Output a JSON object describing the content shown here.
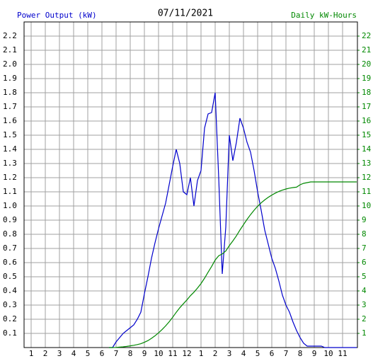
{
  "chart_data": {
    "type": "line",
    "title": "07/11/2021",
    "y_label": "Power Output (kW)",
    "y2_label": "Daily kW-Hours",
    "xlim": [
      0.5,
      24.05
    ],
    "xticks": [
      1,
      2,
      3,
      4,
      5,
      6,
      7,
      8,
      9,
      10,
      11,
      12,
      {
        "value": 13,
        "label": "1"
      },
      {
        "value": 14,
        "label": "2"
      },
      {
        "value": 15,
        "label": "3"
      },
      {
        "value": 16,
        "label": "4"
      },
      {
        "value": 17,
        "label": "5"
      },
      {
        "value": 18,
        "label": "6"
      },
      {
        "value": 19,
        "label": "7"
      },
      {
        "value": 20,
        "label": "8"
      },
      {
        "value": 21,
        "label": "9"
      },
      {
        "value": 22,
        "label": "10"
      },
      {
        "value": 23,
        "label": "11"
      }
    ],
    "ylim": [
      0,
      2.3
    ],
    "yticks": [
      0.1,
      0.2,
      0.3,
      0.4,
      0.5,
      0.6,
      0.7,
      0.8,
      0.9,
      {
        "value": 1,
        "label": "1.0"
      },
      1.1,
      1.2,
      1.3,
      1.4,
      1.5,
      1.6,
      1.7,
      1.8,
      1.9,
      {
        "value": 2,
        "label": "2.0"
      },
      2.1,
      2.2
    ],
    "y2lim": [
      0,
      23
    ],
    "y2ticks": [
      1,
      2,
      3,
      4,
      5,
      6,
      7,
      8,
      9,
      10,
      11,
      12,
      13,
      14,
      15,
      16,
      17,
      18,
      19,
      20,
      21,
      22
    ],
    "grid": true,
    "x": [
      6.5,
      6.75,
      7,
      7.25,
      7.5,
      7.75,
      8,
      8.25,
      8.5,
      8.75,
      9,
      9.25,
      9.5,
      9.75,
      10,
      10.25,
      10.5,
      10.75,
      11,
      11.25,
      11.5,
      11.75,
      12,
      12.25,
      12.5,
      12.75,
      13,
      13.25,
      13.5,
      13.75,
      14,
      14.25,
      14.5,
      14.75,
      15,
      15.25,
      15.5,
      15.75,
      16,
      16.25,
      16.5,
      16.75,
      17,
      17.25,
      17.5,
      17.75,
      18,
      18.25,
      18.5,
      18.75,
      19,
      19.25,
      19.5,
      19.75,
      20,
      20.25,
      20.5,
      20.75,
      21,
      21.25,
      21.5,
      21.75,
      22,
      23,
      24
    ],
    "series": [
      {
        "name": "Power Output (kW)",
        "color": "#0000cc",
        "values": [
          0,
          0,
          0.04,
          0.07,
          0.1,
          0.12,
          0.14,
          0.16,
          0.2,
          0.25,
          0.38,
          0.5,
          0.63,
          0.74,
          0.84,
          0.93,
          1.02,
          1.15,
          1.28,
          1.4,
          1.3,
          1.1,
          1.08,
          1.2,
          1.0,
          1.18,
          1.25,
          1.55,
          1.65,
          1.66,
          1.8,
          1.2,
          0.52,
          0.85,
          1.5,
          1.32,
          1.45,
          1.62,
          1.55,
          1.45,
          1.38,
          1.25,
          1.1,
          0.97,
          0.83,
          0.73,
          0.63,
          0.56,
          0.47,
          0.37,
          0.3,
          0.25,
          0.18,
          0.12,
          0.07,
          0.03,
          0.01,
          0.01,
          0.01,
          0.01,
          0.01,
          0,
          0,
          0,
          0
        ]
      },
      {
        "name": "Daily kW-Hours",
        "color": "#008800",
        "axis": "y2",
        "values": [
          0,
          0,
          0.01,
          0.03,
          0.05,
          0.08,
          0.12,
          0.16,
          0.21,
          0.27,
          0.37,
          0.49,
          0.65,
          0.83,
          1.04,
          1.27,
          1.53,
          1.82,
          2.14,
          2.49,
          2.81,
          3.09,
          3.36,
          3.66,
          3.91,
          4.2,
          4.52,
          4.9,
          5.32,
          5.73,
          6.18,
          6.48,
          6.61,
          6.82,
          7.2,
          7.53,
          7.89,
          8.3,
          8.68,
          9.05,
          9.39,
          9.7,
          9.98,
          10.22,
          10.43,
          10.61,
          10.77,
          10.91,
          11.03,
          11.12,
          11.2,
          11.26,
          11.3,
          11.33,
          11.5,
          11.6,
          11.65,
          11.7,
          11.7,
          11.7,
          11.7,
          11.7,
          11.7,
          11.7,
          11.7
        ]
      }
    ]
  }
}
